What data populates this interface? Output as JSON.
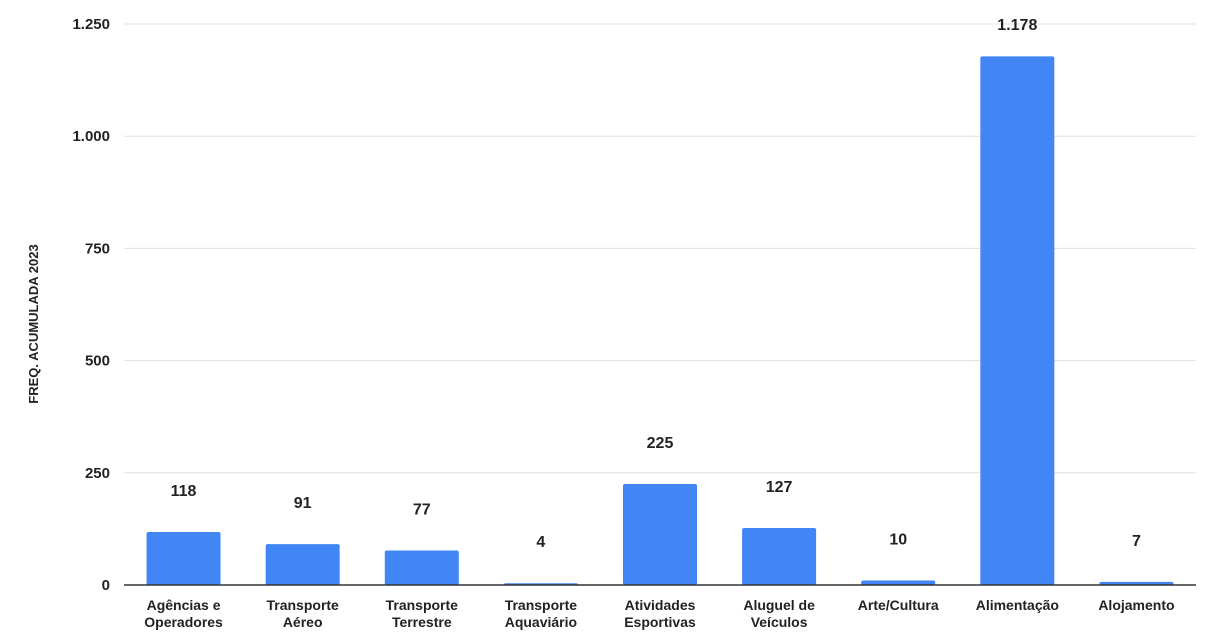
{
  "chart_data": {
    "type": "bar",
    "title": "",
    "xlabel": "",
    "ylabel": "FREQ. ACUMULADA 2023",
    "categories": [
      [
        "Agências e",
        "Operadores"
      ],
      [
        "Transporte",
        "Aéreo"
      ],
      [
        "Transporte",
        "Terrestre"
      ],
      [
        "Transporte",
        "Aquaviário"
      ],
      [
        "Atividades",
        "Esportivas"
      ],
      [
        "Aluguel de",
        "Veículos"
      ],
      [
        "Arte/Cultura"
      ],
      [
        "Alimentação"
      ],
      [
        "Alojamento"
      ]
    ],
    "values": [
      118,
      91,
      77,
      4,
      225,
      127,
      10,
      1178,
      7
    ],
    "data_labels": [
      "118",
      "91",
      "77",
      "4",
      "225",
      "127",
      "10",
      "1.178",
      "7"
    ],
    "ylim": [
      0,
      1250
    ],
    "yticks": [
      0,
      250,
      500,
      750,
      1000,
      1250
    ],
    "ytick_labels": [
      "0",
      "250",
      "500",
      "750",
      "1.000",
      "1.250"
    ],
    "grid": true,
    "legend": "none",
    "colors": {
      "bar": "#4285f4",
      "grid": "#e0e0e0",
      "axis": "#333333",
      "text": "#222222"
    }
  }
}
